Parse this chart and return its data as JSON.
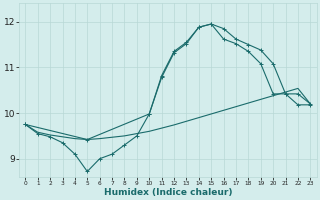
{
  "xlabel": "Humidex (Indice chaleur)",
  "bg_color": "#d4edec",
  "grid_color": "#b8d8d6",
  "line_color": "#1a6b6b",
  "xlim": [
    -0.5,
    23.5
  ],
  "ylim": [
    8.6,
    12.4
  ],
  "xticks": [
    0,
    1,
    2,
    3,
    4,
    5,
    6,
    7,
    8,
    9,
    10,
    11,
    12,
    13,
    14,
    15,
    16,
    17,
    18,
    19,
    20,
    21,
    22,
    23
  ],
  "yticks": [
    9,
    10,
    11,
    12
  ],
  "line1_x": [
    0,
    1,
    2,
    3,
    4,
    5,
    6,
    7,
    8,
    9,
    10,
    11,
    12,
    13,
    14,
    15,
    16,
    17,
    18,
    19,
    20,
    21,
    22,
    23
  ],
  "line1_y": [
    9.75,
    9.55,
    9.48,
    9.35,
    9.1,
    8.72,
    9.0,
    9.1,
    9.3,
    9.5,
    9.98,
    10.78,
    11.32,
    11.52,
    11.88,
    11.95,
    11.85,
    11.62,
    11.5,
    11.38,
    11.08,
    10.42,
    10.18,
    10.18
  ],
  "line2_x": [
    0,
    1,
    2,
    3,
    4,
    5,
    6,
    7,
    8,
    9,
    10,
    11,
    12,
    13,
    14,
    15,
    16,
    17,
    18,
    19,
    20,
    21,
    22,
    23
  ],
  "line2_y": [
    9.75,
    9.58,
    9.52,
    9.48,
    9.44,
    9.42,
    9.44,
    9.47,
    9.5,
    9.55,
    9.6,
    9.67,
    9.74,
    9.82,
    9.9,
    9.98,
    10.06,
    10.14,
    10.22,
    10.3,
    10.38,
    10.46,
    10.54,
    10.2
  ],
  "line3_x": [
    0,
    5,
    10,
    11,
    12,
    13,
    14,
    15,
    16,
    17,
    18,
    19,
    20,
    21,
    22,
    23
  ],
  "line3_y": [
    9.75,
    9.42,
    9.98,
    10.82,
    11.35,
    11.55,
    11.88,
    11.95,
    11.62,
    11.52,
    11.35,
    11.08,
    10.42,
    10.42,
    10.42,
    10.2
  ]
}
